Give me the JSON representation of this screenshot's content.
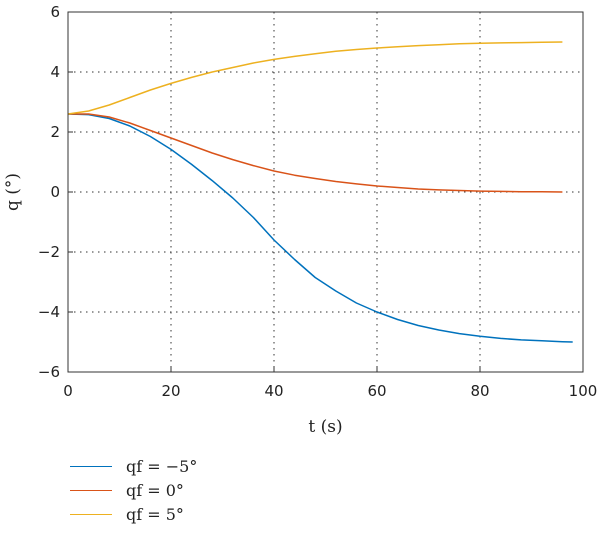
{
  "chart_data": {
    "type": "line",
    "xlabel": "t (s)",
    "ylabel": "q (°)",
    "xlim": [
      0,
      100
    ],
    "ylim": [
      -6,
      6
    ],
    "xticks": [
      0,
      20,
      40,
      60,
      80,
      100
    ],
    "yticks": [
      -6,
      -4,
      -2,
      0,
      2,
      4,
      6
    ],
    "xtick_labels": [
      "0",
      "20",
      "40",
      "60",
      "80",
      "100"
    ],
    "ytick_labels": [
      "−6",
      "−4",
      "−2",
      "0",
      "2",
      "4",
      "6"
    ],
    "grid": true,
    "legend_position": "below",
    "series": [
      {
        "name": "qf = −5°",
        "color": "#0072BD",
        "x": [
          0,
          4,
          8,
          12,
          16,
          20,
          24,
          28,
          32,
          36,
          40,
          44,
          48,
          52,
          56,
          60,
          64,
          68,
          72,
          76,
          80,
          84,
          88,
          92,
          96,
          98
        ],
        "y": [
          2.6,
          2.58,
          2.45,
          2.2,
          1.85,
          1.42,
          0.92,
          0.38,
          -0.2,
          -0.85,
          -1.6,
          -2.25,
          -2.85,
          -3.3,
          -3.7,
          -4.0,
          -4.25,
          -4.45,
          -4.6,
          -4.72,
          -4.81,
          -4.88,
          -4.93,
          -4.96,
          -4.99,
          -5.0
        ]
      },
      {
        "name": "qf = 0°",
        "color": "#D95319",
        "x": [
          0,
          4,
          8,
          12,
          16,
          20,
          24,
          28,
          32,
          36,
          40,
          44,
          48,
          52,
          56,
          60,
          64,
          68,
          72,
          76,
          80,
          84,
          88,
          92,
          96
        ],
        "y": [
          2.6,
          2.6,
          2.5,
          2.3,
          2.05,
          1.8,
          1.55,
          1.3,
          1.08,
          0.88,
          0.7,
          0.56,
          0.45,
          0.35,
          0.27,
          0.2,
          0.15,
          0.1,
          0.07,
          0.05,
          0.03,
          0.02,
          0.01,
          0.01,
          0.0
        ]
      },
      {
        "name": "qf = 5°",
        "color": "#EDB120",
        "x": [
          0,
          4,
          8,
          12,
          16,
          20,
          24,
          28,
          32,
          36,
          40,
          44,
          48,
          52,
          56,
          60,
          64,
          68,
          72,
          76,
          80,
          84,
          88,
          92,
          96
        ],
        "y": [
          2.6,
          2.7,
          2.9,
          3.15,
          3.4,
          3.62,
          3.82,
          4.0,
          4.15,
          4.3,
          4.42,
          4.52,
          4.61,
          4.69,
          4.75,
          4.8,
          4.84,
          4.88,
          4.91,
          4.94,
          4.96,
          4.97,
          4.98,
          4.99,
          5.0
        ]
      }
    ]
  }
}
